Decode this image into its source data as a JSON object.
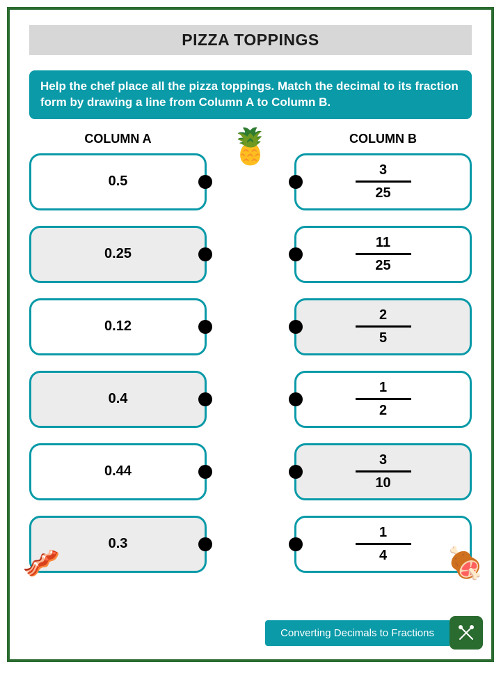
{
  "colors": {
    "page_border": "#2a6b2f",
    "teal": "#0a9aa8",
    "title_bg": "#d7d7d7",
    "footer_icon_bg": "#2a6b2f"
  },
  "title": "PIZZA TOPPINGS",
  "instructions": "Help the chef place all the pizza toppings. Match the decimal to its fraction form by drawing a line from Column A to Column B.",
  "colA": {
    "header": "COLUMN A",
    "items": [
      {
        "value": "0.5",
        "shaded": false
      },
      {
        "value": "0.25",
        "shaded": true
      },
      {
        "value": "0.12",
        "shaded": false
      },
      {
        "value": "0.4",
        "shaded": true
      },
      {
        "value": "0.44",
        "shaded": false
      },
      {
        "value": "0.3",
        "shaded": true
      }
    ]
  },
  "colB": {
    "header": "COLUMN B",
    "items": [
      {
        "num": "3",
        "den": "25",
        "shaded": false
      },
      {
        "num": "11",
        "den": "25",
        "shaded": false
      },
      {
        "num": "2",
        "den": "5",
        "shaded": true
      },
      {
        "num": "1",
        "den": "2",
        "shaded": false
      },
      {
        "num": "3",
        "den": "10",
        "shaded": true
      },
      {
        "num": "1",
        "den": "4",
        "shaded": false
      }
    ]
  },
  "footer": "Converting Decimals to Fractions",
  "icons": {
    "pineapple": "🍍",
    "bacon": "🥓",
    "meat": "🍖"
  }
}
